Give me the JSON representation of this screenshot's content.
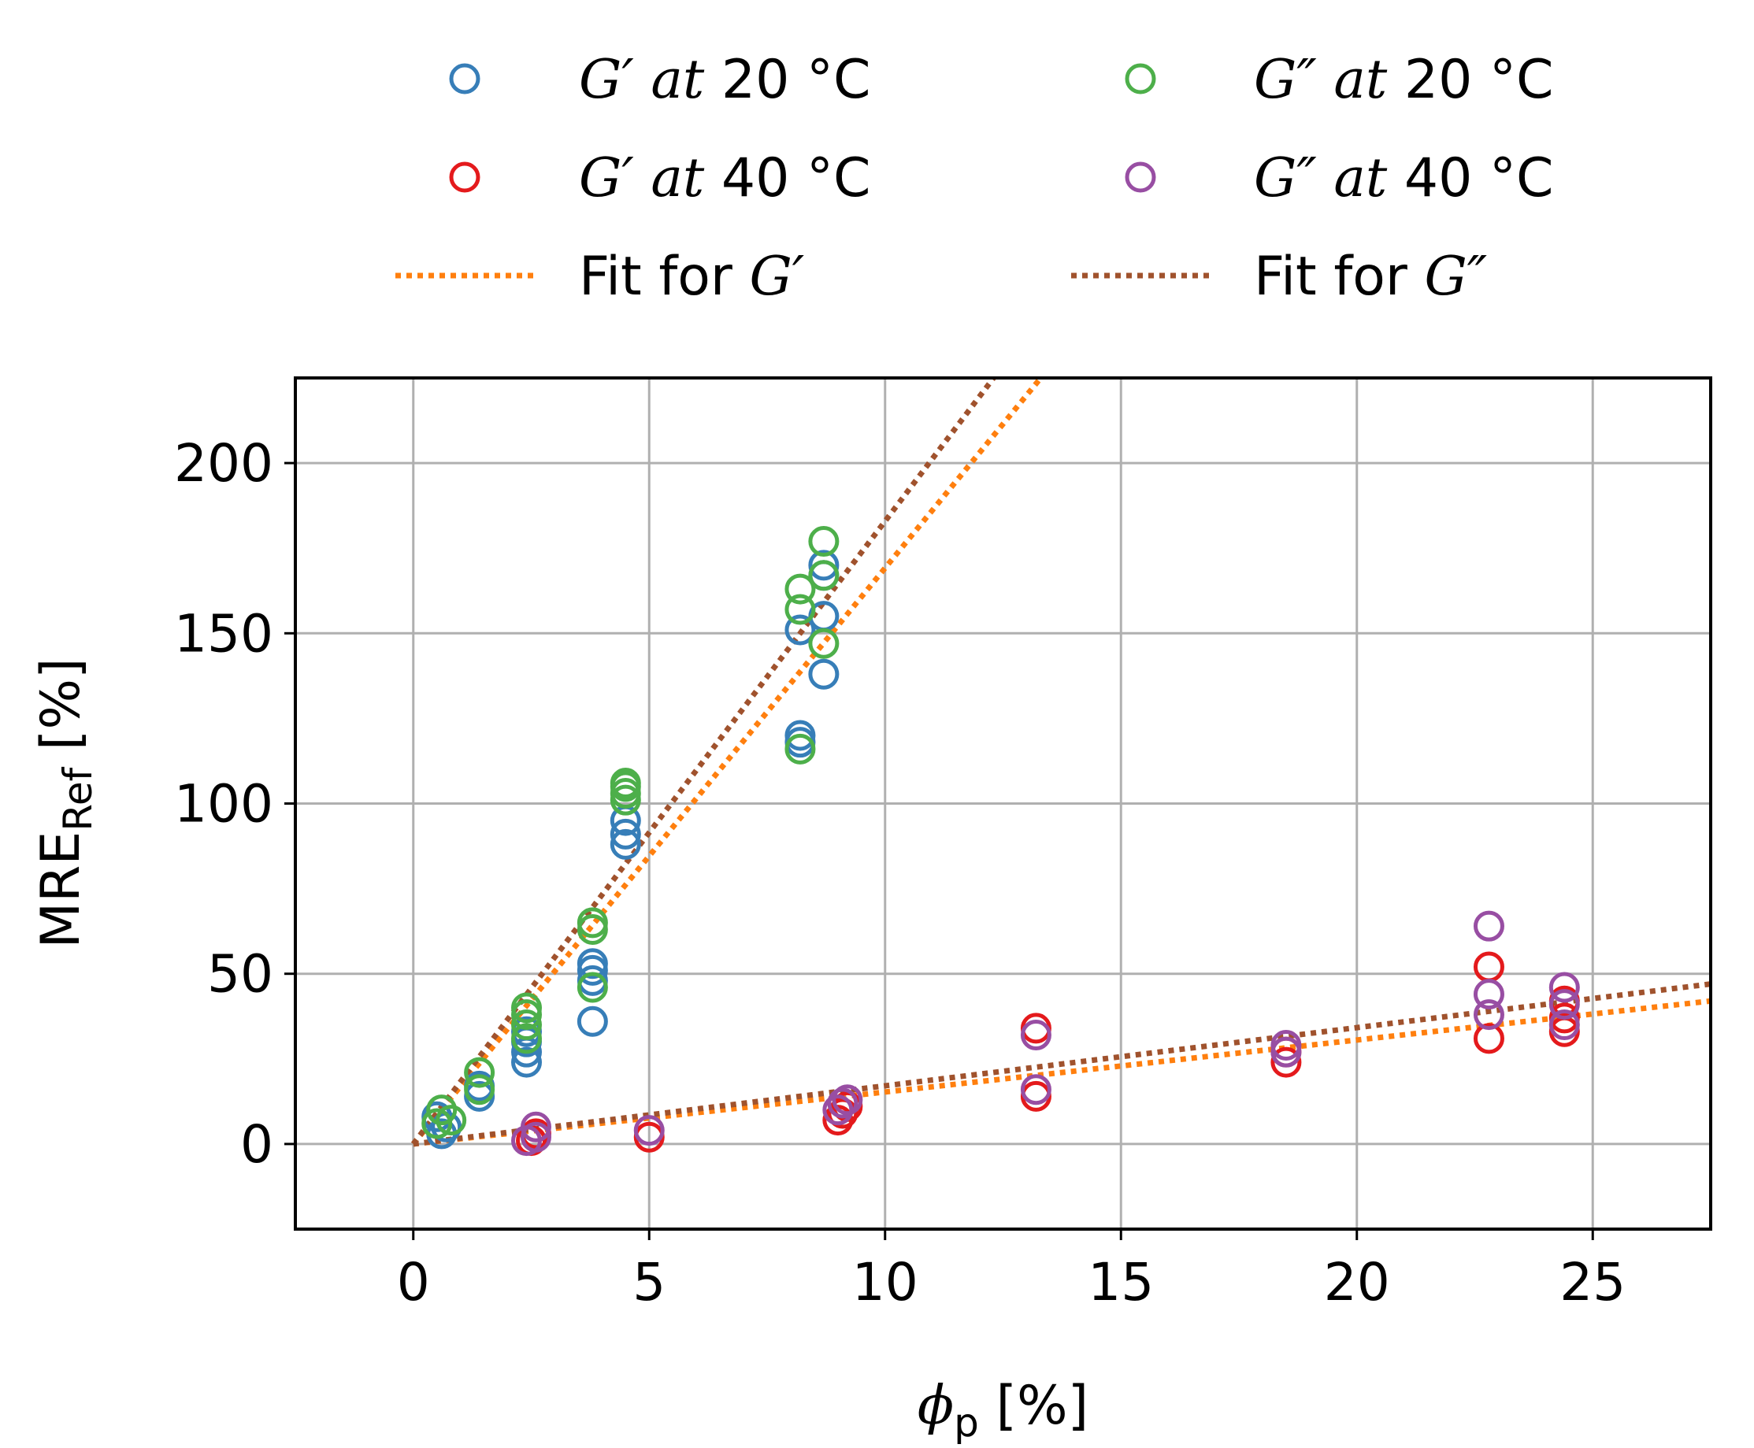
{
  "chart_data": {
    "type": "scatter",
    "xlabel": {
      "symbol": "ϕ",
      "subscript": "p",
      "unit": "[%]"
    },
    "ylabel": {
      "base": "MRE",
      "subscript": "Ref",
      "unit": "[%]"
    },
    "xlim": [
      -2.5,
      27.5
    ],
    "ylim": [
      -25,
      225
    ],
    "xticks": [
      0,
      5,
      10,
      15,
      20,
      25
    ],
    "yticks": [
      0,
      50,
      100,
      150,
      200
    ],
    "xtick_labels": [
      "0",
      "5",
      "10",
      "15",
      "20",
      "25"
    ],
    "ytick_labels": [
      "0",
      "50",
      "100",
      "150",
      "200"
    ],
    "grid": true,
    "legend_position": "top",
    "series": [
      {
        "name": "G′ at 20 °C",
        "label_math": "G′ at",
        "label_rest": "20 °C",
        "marker": "open-circle",
        "color": "#377eb8",
        "points": [
          [
            0.6,
            3
          ],
          [
            0.7,
            5
          ],
          [
            0.5,
            8
          ],
          [
            1.4,
            14
          ],
          [
            1.4,
            17
          ],
          [
            2.4,
            24
          ],
          [
            2.4,
            27
          ],
          [
            2.4,
            30
          ],
          [
            2.4,
            33
          ],
          [
            3.8,
            36
          ],
          [
            3.8,
            48
          ],
          [
            3.8,
            51
          ],
          [
            3.8,
            53
          ],
          [
            4.5,
            88
          ],
          [
            4.5,
            91
          ],
          [
            4.5,
            95
          ],
          [
            8.2,
            118
          ],
          [
            8.2,
            120
          ],
          [
            8.2,
            151
          ],
          [
            8.7,
            138
          ],
          [
            8.7,
            155
          ],
          [
            8.7,
            167
          ],
          [
            8.7,
            170
          ]
        ]
      },
      {
        "name": "G″ at 20 °C",
        "label_math": "G″ at",
        "label_rest": "20 °C",
        "marker": "open-circle",
        "color": "#4daf4a",
        "points": [
          [
            0.5,
            6
          ],
          [
            0.6,
            10
          ],
          [
            0.8,
            7
          ],
          [
            1.4,
            16
          ],
          [
            1.4,
            21
          ],
          [
            2.4,
            31
          ],
          [
            2.4,
            35
          ],
          [
            2.4,
            38
          ],
          [
            2.4,
            40
          ],
          [
            3.8,
            46
          ],
          [
            3.8,
            63
          ],
          [
            3.8,
            65
          ],
          [
            4.5,
            101
          ],
          [
            4.5,
            103
          ],
          [
            4.5,
            105
          ],
          [
            4.5,
            106
          ],
          [
            8.2,
            116
          ],
          [
            8.2,
            157
          ],
          [
            8.2,
            163
          ],
          [
            8.7,
            147
          ],
          [
            8.7,
            167
          ],
          [
            8.7,
            177
          ]
        ]
      },
      {
        "name": "G′ at 40 °C",
        "label_math": "G′ at",
        "label_rest": "40 °C",
        "marker": "open-circle",
        "color": "#e41a1c",
        "points": [
          [
            2.5,
            1
          ],
          [
            2.6,
            3
          ],
          [
            5.0,
            2
          ],
          [
            9.0,
            7
          ],
          [
            9.1,
            9
          ],
          [
            9.2,
            11
          ],
          [
            13.2,
            14
          ],
          [
            13.2,
            34
          ],
          [
            18.5,
            24
          ],
          [
            18.5,
            27
          ],
          [
            22.8,
            31
          ],
          [
            22.8,
            52
          ],
          [
            24.4,
            33
          ],
          [
            24.4,
            37
          ],
          [
            24.4,
            42
          ]
        ]
      },
      {
        "name": "G″ at 40 °C",
        "label_math": "G″ at",
        "label_rest": "40 °C",
        "marker": "open-circle",
        "color": "#984ea3",
        "points": [
          [
            2.4,
            1
          ],
          [
            2.6,
            2
          ],
          [
            2.6,
            5
          ],
          [
            5.0,
            4
          ],
          [
            9.0,
            10
          ],
          [
            9.1,
            12
          ],
          [
            9.2,
            13
          ],
          [
            13.2,
            16
          ],
          [
            13.2,
            32
          ],
          [
            18.5,
            27
          ],
          [
            18.5,
            29
          ],
          [
            22.8,
            38
          ],
          [
            22.8,
            44
          ],
          [
            22.8,
            64
          ],
          [
            24.4,
            35
          ],
          [
            24.4,
            41
          ],
          [
            24.4,
            46
          ]
        ]
      }
    ],
    "fits": [
      {
        "name": "Fit for G′",
        "label_text": "Fit for ",
        "label_math": "G′",
        "style": "dotted",
        "color": "#ff7f0e",
        "segments": [
          {
            "from": [
              0,
              0
            ],
            "to": [
              13.3,
              225
            ]
          },
          {
            "from": [
              0,
              0
            ],
            "to": [
              27.5,
              42
            ]
          }
        ]
      },
      {
        "name": "Fit for G″",
        "label_text": "Fit for ",
        "label_math": "G″",
        "style": "dotted",
        "color": "#a0522d",
        "segments": [
          {
            "from": [
              0,
              0
            ],
            "to": [
              12.3,
              225
            ]
          },
          {
            "from": [
              0,
              0
            ],
            "to": [
              27.5,
              47
            ]
          }
        ]
      }
    ]
  }
}
